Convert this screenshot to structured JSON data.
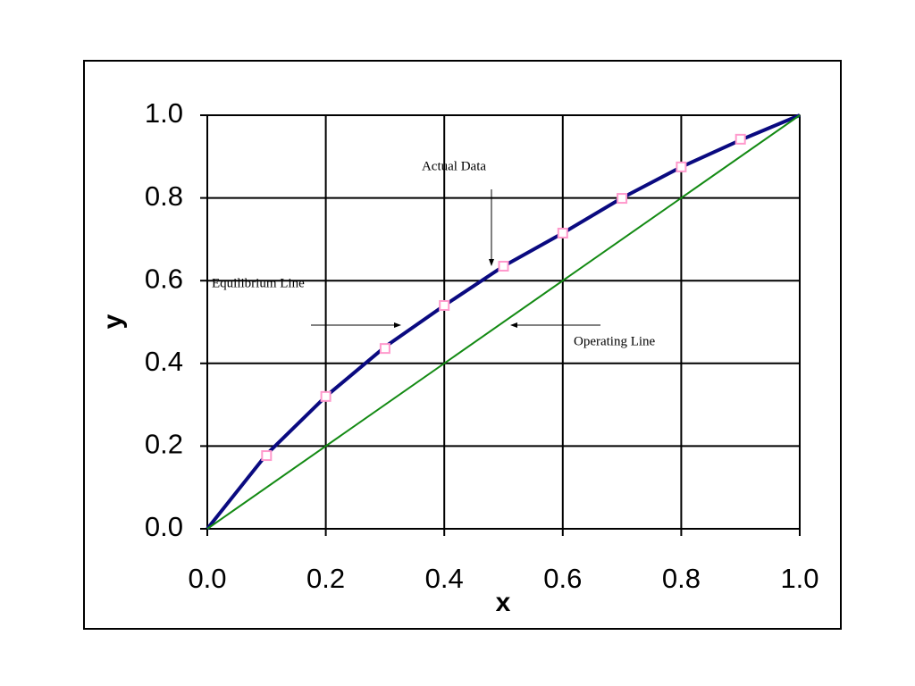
{
  "chart_data": {
    "type": "line",
    "x_label": "x",
    "y_label": "y",
    "xlim": [
      0,
      1
    ],
    "ylim": [
      0,
      1
    ],
    "xticks": [
      {
        "value": 0,
        "label": "0.0"
      },
      0.2,
      0.4,
      0.6,
      0.8,
      {
        "value": 1,
        "label": "1.0"
      }
    ],
    "yticks": [
      {
        "value": 0,
        "label": "0.0"
      },
      0.2,
      0.4,
      0.6,
      0.8,
      {
        "value": 1,
        "label": "1.0"
      }
    ],
    "grid": true,
    "series": [
      {
        "color": "#0a0a80",
        "x": [
          0,
          0.1,
          0.2,
          0.3,
          0.4,
          0.5,
          0.6,
          0.7,
          0.8,
          0.9,
          1
        ],
        "values": [
          0,
          0.18,
          0.32,
          0.44,
          0.54,
          0.635,
          0.715,
          0.8,
          0.875,
          0.94,
          1
        ]
      },
      {
        "color": "#ff99cc",
        "marker": "square",
        "x": [
          0.1,
          0.2,
          0.3,
          0.4,
          0.5,
          0.6,
          0.7,
          0.8,
          0.9
        ],
        "values": [
          0.177,
          0.32,
          0.436,
          0.54,
          0.635,
          0.715,
          0.799,
          0.875,
          0.942
        ]
      },
      {
        "color": "#138a13",
        "x": [
          0,
          1
        ],
        "values": [
          0,
          1
        ]
      }
    ],
    "annotations": [
      "Actual Data",
      "Equilibrium Line",
      "Operating Line"
    ]
  }
}
